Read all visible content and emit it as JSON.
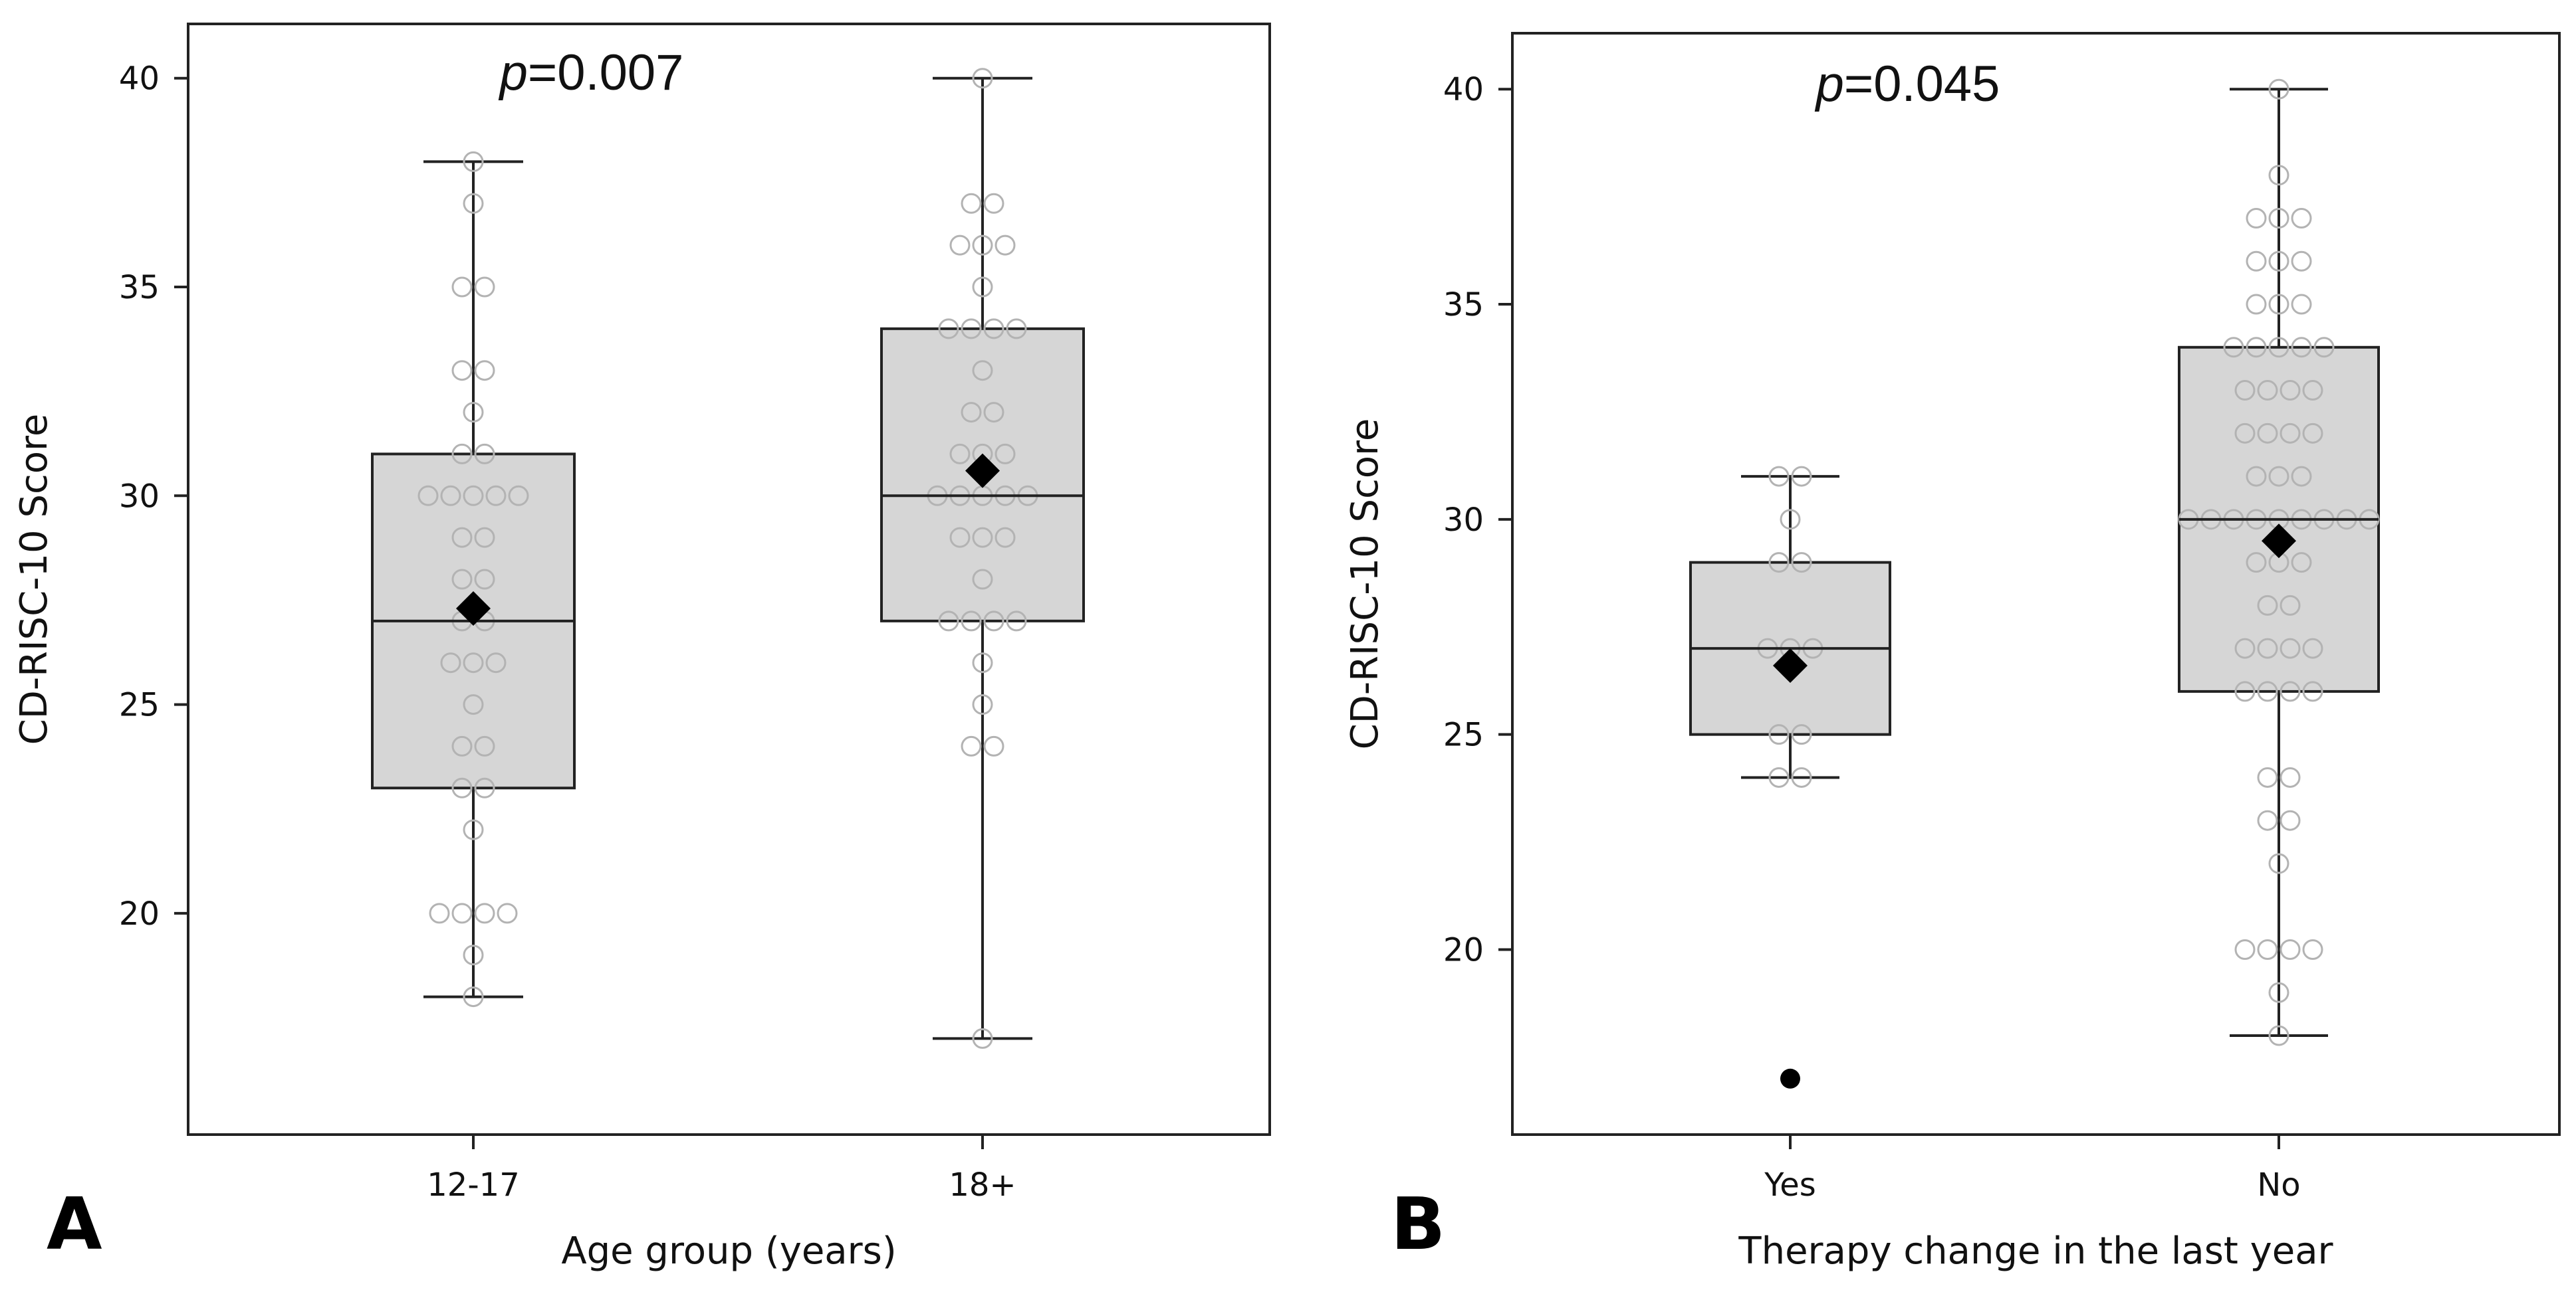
{
  "chart_data": [
    {
      "type": "box",
      "panel_label": "A",
      "title": "",
      "annotation_prefix": "p",
      "annotation_value": "=0.007",
      "xlabel": "Age group (years)",
      "ylabel": "CD-RISC-10 Score",
      "ylim": [
        14.7,
        41.3
      ],
      "yticks": [
        20,
        25,
        30,
        35,
        40
      ],
      "grid": false,
      "groups": [
        {
          "name": "12-17",
          "q1": 23,
          "median": 27,
          "q3": 31,
          "whisker_low": 18,
          "whisker_high": 38,
          "mean": 27.3,
          "outliers": [],
          "points": [
            38,
            37,
            35,
            35,
            33,
            33,
            32,
            31,
            31,
            30,
            30,
            30,
            30,
            30,
            29,
            29,
            28,
            28,
            27,
            27,
            26,
            26,
            26,
            25,
            24,
            24,
            23,
            23,
            22,
            20,
            20,
            20,
            20,
            19,
            18
          ]
        },
        {
          "name": "18+",
          "q1": 27,
          "median": 30,
          "q3": 34,
          "whisker_low": 17,
          "whisker_high": 40,
          "mean": 30.6,
          "outliers": [],
          "points": [
            40,
            37,
            37,
            36,
            36,
            36,
            35,
            34,
            34,
            34,
            34,
            33,
            32,
            32,
            31,
            31,
            31,
            30,
            30,
            30,
            30,
            30,
            29,
            29,
            29,
            28,
            27,
            27,
            27,
            27,
            26,
            25,
            24,
            24,
            17
          ]
        }
      ]
    },
    {
      "type": "box",
      "panel_label": "B",
      "title": "",
      "annotation_prefix": "p",
      "annotation_value": "=0.045",
      "xlabel": "Therapy change in the last year",
      "ylabel": "CD-RISC-10 Score",
      "ylim": [
        15.7,
        41.3
      ],
      "yticks": [
        20,
        25,
        30,
        35,
        40
      ],
      "grid": false,
      "groups": [
        {
          "name": "Yes",
          "q1": 25,
          "median": 27,
          "q3": 29,
          "whisker_low": 24,
          "whisker_high": 31,
          "mean": 26.6,
          "outliers": [
            17
          ],
          "points": [
            31,
            31,
            30,
            29,
            29,
            27,
            27,
            27,
            25,
            25,
            24,
            24
          ]
        },
        {
          "name": "No",
          "q1": 26,
          "median": 30,
          "q3": 34,
          "whisker_low": 18,
          "whisker_high": 40,
          "mean": 29.5,
          "outliers": [],
          "points": [
            40,
            38,
            37,
            37,
            37,
            36,
            36,
            36,
            35,
            35,
            35,
            34,
            34,
            34,
            34,
            34,
            33,
            33,
            33,
            33,
            32,
            32,
            32,
            32,
            31,
            31,
            31,
            30,
            30,
            30,
            30,
            30,
            30,
            30,
            30,
            30,
            29,
            29,
            29,
            28,
            28,
            27,
            27,
            27,
            27,
            26,
            26,
            26,
            26,
            24,
            24,
            23,
            23,
            22,
            20,
            20,
            20,
            20,
            19,
            18
          ]
        }
      ]
    }
  ]
}
